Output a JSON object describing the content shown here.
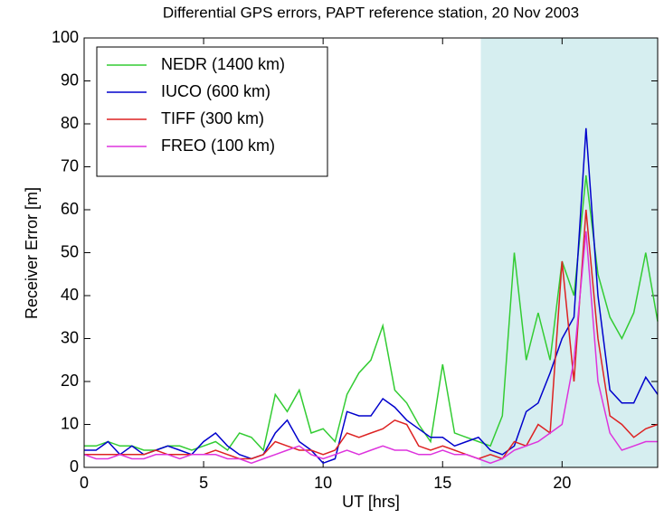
{
  "chart_data": {
    "type": "line",
    "title": "Differential GPS errors, PAPT reference station, 20 Nov 2003",
    "xlabel": "UT [hrs]",
    "ylabel": "Receiver Error [m]",
    "x": [
      0,
      0.5,
      1,
      1.5,
      2,
      2.5,
      3,
      3.5,
      4,
      4.5,
      5,
      5.5,
      6,
      6.5,
      7,
      7.5,
      8,
      8.5,
      9,
      9.5,
      10,
      10.5,
      11,
      11.5,
      12,
      12.5,
      13,
      13.5,
      14,
      14.5,
      15,
      15.5,
      16,
      16.5,
      17,
      17.5,
      18,
      18.5,
      19,
      19.5,
      20,
      20.5,
      21,
      21.5,
      22,
      22.5,
      23,
      23.5,
      24
    ],
    "series": [
      {
        "name": "NEDR (1400 km)",
        "color": "#33cc33",
        "values": [
          5,
          5,
          6,
          5,
          5,
          4,
          4,
          5,
          5,
          4,
          5,
          6,
          4,
          8,
          7,
          4,
          17,
          13,
          18,
          8,
          9,
          6,
          17,
          22,
          25,
          33,
          18,
          15,
          10,
          6,
          24,
          8,
          7,
          6,
          5,
          12,
          50,
          25,
          36,
          25,
          48,
          40,
          68,
          45,
          35,
          30,
          36,
          50,
          34
        ]
      },
      {
        "name": "IUCO (600 km)",
        "color": "#0000cc",
        "values": [
          4,
          4,
          6,
          3,
          5,
          3,
          4,
          5,
          4,
          3,
          6,
          8,
          5,
          3,
          2,
          3,
          8,
          11,
          6,
          4,
          1,
          2,
          13,
          12,
          12,
          16,
          14,
          11,
          9,
          7,
          7,
          5,
          6,
          7,
          4,
          3,
          5,
          13,
          15,
          22,
          30,
          35,
          79,
          40,
          18,
          15,
          15,
          21,
          17
        ]
      },
      {
        "name": "TIFF (300 km)",
        "color": "#dd2222",
        "values": [
          3,
          3,
          3,
          3,
          3,
          3,
          4,
          3,
          3,
          3,
          3,
          4,
          3,
          2,
          2,
          3,
          6,
          5,
          4,
          4,
          3,
          4,
          8,
          7,
          8,
          9,
          11,
          10,
          5,
          4,
          5,
          4,
          3,
          2,
          3,
          2,
          6,
          5,
          10,
          8,
          48,
          20,
          60,
          30,
          12,
          10,
          7,
          9,
          10
        ]
      },
      {
        "name": "FREO (100 km)",
        "color": "#dd33dd",
        "values": [
          3,
          2,
          2,
          3,
          2,
          2,
          3,
          3,
          2,
          3,
          3,
          3,
          2,
          2,
          1,
          2,
          3,
          4,
          5,
          3,
          2,
          3,
          4,
          3,
          4,
          5,
          4,
          4,
          3,
          3,
          4,
          3,
          3,
          2,
          1,
          2,
          4,
          5,
          6,
          8,
          10,
          25,
          55,
          20,
          8,
          4,
          5,
          6,
          6
        ]
      }
    ],
    "shaded_region": [
      16.6,
      24
    ],
    "shade_color": "#d6eef0",
    "xlim": [
      0,
      24
    ],
    "xticks": [
      0,
      5,
      10,
      15,
      20
    ],
    "ylim": [
      0,
      100
    ],
    "yticks": [
      0,
      10,
      20,
      30,
      40,
      50,
      60,
      70,
      80,
      90,
      100
    ],
    "legend": "upper left"
  }
}
